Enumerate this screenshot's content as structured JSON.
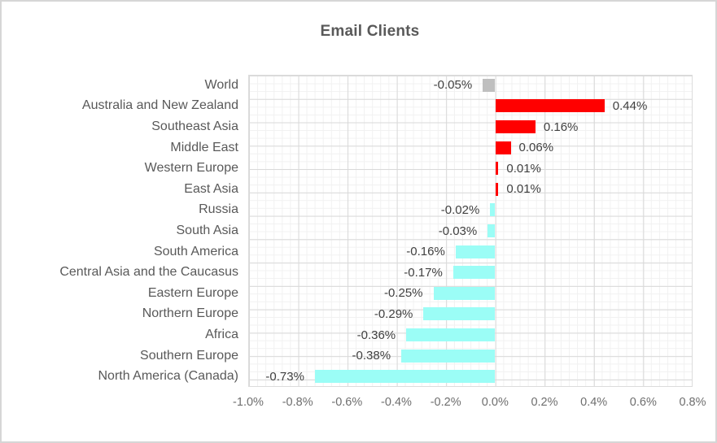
{
  "chart_data": {
    "type": "bar",
    "orientation": "horizontal",
    "title": "Email Clients",
    "categories": [
      "World",
      "Australia and New Zealand",
      "Southeast Asia",
      "Middle East",
      "Western Europe",
      "East Asia",
      "Russia",
      "South Asia",
      "South America",
      "Central Asia and the Caucasus",
      "Eastern Europe",
      "Northern Europe",
      "Africa",
      "Southern Europe",
      "North America (Canada)"
    ],
    "values": [
      -0.05,
      0.44,
      0.16,
      0.06,
      0.01,
      0.01,
      -0.02,
      -0.03,
      -0.16,
      -0.17,
      -0.25,
      -0.29,
      -0.36,
      -0.38,
      -0.73
    ],
    "value_labels": [
      "-0.05%",
      "0.44%",
      "0.16%",
      "0.06%",
      "0.01%",
      "0.01%",
      "-0.02%",
      "-0.03%",
      "-0.16%",
      "-0.17%",
      "-0.25%",
      "-0.29%",
      "-0.36%",
      "-0.38%",
      "-0.73%"
    ],
    "bar_colors": [
      "#BFBFBF",
      "#FF0000",
      "#FF0000",
      "#FF0000",
      "#FF0000",
      "#FF0000",
      "#9BFDF6",
      "#9BFDF6",
      "#9BFDF6",
      "#9BFDF6",
      "#9BFDF6",
      "#9BFDF6",
      "#9BFDF6",
      "#9BFDF6",
      "#9BFDF6"
    ],
    "xlabel": "",
    "ylabel": "",
    "xlim": [
      -1.0,
      0.8
    ],
    "x_ticks": [
      "-1.0%",
      "-0.8%",
      "-0.6%",
      "-0.4%",
      "-0.2%",
      "0.0%",
      "0.2%",
      "0.4%",
      "0.6%",
      "0.8%"
    ],
    "x_tick_values": [
      -1.0,
      -0.8,
      -0.6,
      -0.4,
      -0.2,
      0.0,
      0.2,
      0.4,
      0.6,
      0.8
    ],
    "grid": "minor and major gridlines on",
    "legend": "none",
    "colors": {
      "positive_bar": "#FF0000",
      "negative_bar": "#9BFDF6",
      "world_bar": "#BFBFBF",
      "major_grid": "#d9d9d9",
      "minor_grid": "#f1f1f1",
      "title_text": "#595959",
      "label_text": "#595959",
      "value_text": "#404040"
    }
  }
}
